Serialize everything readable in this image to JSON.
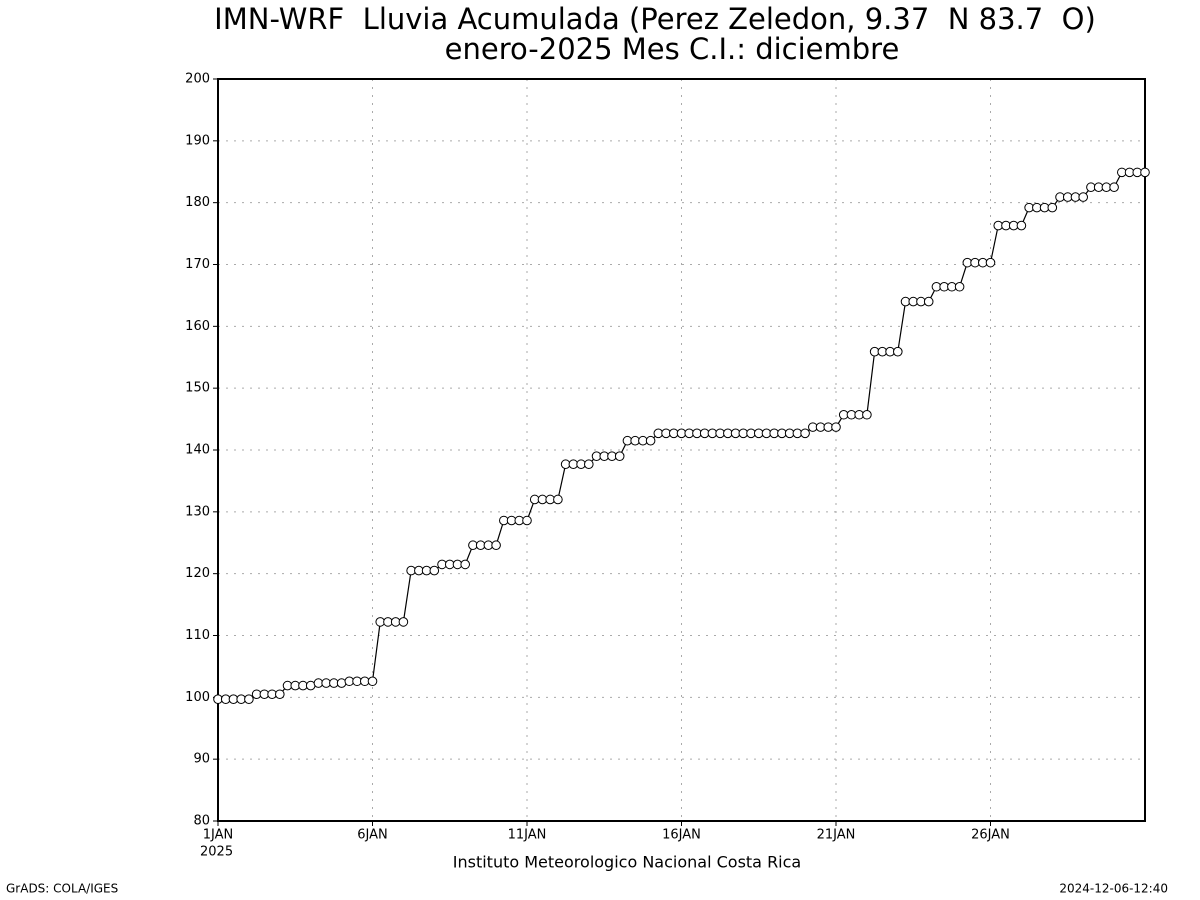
{
  "chart_data": {
    "type": "line",
    "title": "IMN-WRF  Lluvia Acumulada (Perez Zeledon, 9.37  N 83.7  O)",
    "subtitle": "enero-2025 Mes C.I.: diciembre",
    "x_label": "Instituto Meteorologico Nacional Costa Rica",
    "x_year": "2025",
    "footer_left": "GrADS: COLA/IGES",
    "footer_right": "2024-12-06-12:40",
    "x": [
      1,
      1.25,
      1.5,
      1.75,
      2,
      2.25,
      2.5,
      2.75,
      3,
      3.25,
      3.5,
      3.75,
      4,
      4.25,
      4.5,
      4.75,
      5,
      5.25,
      5.5,
      5.75,
      6,
      6.25,
      6.5,
      6.75,
      7,
      7.25,
      7.5,
      7.75,
      8,
      8.25,
      8.5,
      8.75,
      9,
      9.25,
      9.5,
      9.75,
      10,
      10.25,
      10.5,
      10.75,
      11,
      11.25,
      11.5,
      11.75,
      12,
      12.25,
      12.5,
      12.75,
      13,
      13.25,
      13.5,
      13.75,
      14,
      14.25,
      14.5,
      14.75,
      15,
      15.25,
      15.5,
      15.75,
      16,
      16.25,
      16.5,
      16.75,
      17,
      17.25,
      17.5,
      17.75,
      18,
      18.25,
      18.5,
      18.75,
      19,
      19.25,
      19.5,
      19.75,
      20,
      20.25,
      20.5,
      20.75,
      21,
      21.25,
      21.5,
      21.75,
      22,
      22.25,
      22.5,
      22.75,
      23,
      23.25,
      23.5,
      23.75,
      24,
      24.25,
      24.5,
      24.75,
      25,
      25.25,
      25.5,
      25.75,
      26,
      26.25,
      26.5,
      26.75,
      27,
      27.25,
      27.5,
      27.75,
      28,
      28.25,
      28.5,
      28.75,
      29,
      29.25,
      29.5,
      29.75,
      30,
      30.25,
      30.5,
      30.75,
      31
    ],
    "series": [
      {
        "color": "#000000",
        "marker_fill": "#ffffff",
        "values": [
          99.7,
          99.7,
          99.7,
          99.7,
          99.7,
          100.5,
          100.5,
          100.5,
          100.5,
          101.9,
          101.9,
          101.9,
          101.9,
          102.3,
          102.3,
          102.3,
          102.3,
          102.6,
          102.6,
          102.6,
          102.6,
          112.2,
          112.2,
          112.2,
          112.2,
          120.5,
          120.5,
          120.5,
          120.5,
          121.5,
          121.5,
          121.5,
          121.5,
          124.6,
          124.6,
          124.6,
          124.6,
          128.6,
          128.6,
          128.6,
          128.6,
          132.0,
          132.0,
          132.0,
          132.0,
          137.7,
          137.7,
          137.7,
          137.7,
          139.0,
          139.0,
          139.0,
          139.0,
          141.5,
          141.5,
          141.5,
          141.5,
          142.7,
          142.7,
          142.7,
          142.7,
          142.7,
          142.7,
          142.7,
          142.7,
          142.7,
          142.7,
          142.7,
          142.7,
          142.7,
          142.7,
          142.7,
          142.7,
          142.7,
          142.7,
          142.7,
          142.7,
          143.7,
          143.7,
          143.7,
          143.7,
          145.7,
          145.7,
          145.7,
          145.7,
          155.9,
          155.9,
          155.9,
          155.9,
          164.0,
          164.0,
          164.0,
          164.0,
          166.4,
          166.4,
          166.4,
          166.4,
          170.3,
          170.3,
          170.3,
          170.3,
          176.3,
          176.3,
          176.3,
          176.3,
          179.2,
          179.2,
          179.2,
          179.2,
          180.9,
          180.9,
          180.9,
          180.9,
          182.5,
          182.5,
          182.5,
          182.5,
          184.9,
          184.9,
          184.9,
          184.9
        ]
      }
    ],
    "xlim": [
      1,
      31
    ],
    "xticks": [
      {
        "value": 1,
        "label": "1JAN"
      },
      {
        "value": 6,
        "label": "6JAN"
      },
      {
        "value": 11,
        "label": "11JAN"
      },
      {
        "value": 16,
        "label": "16JAN"
      },
      {
        "value": 21,
        "label": "21JAN"
      },
      {
        "value": 26,
        "label": "26JAN"
      }
    ],
    "ylim": [
      80,
      200
    ],
    "yticks": [
      80,
      90,
      100,
      110,
      120,
      130,
      140,
      150,
      160,
      170,
      180,
      190,
      200
    ],
    "grid": true
  }
}
